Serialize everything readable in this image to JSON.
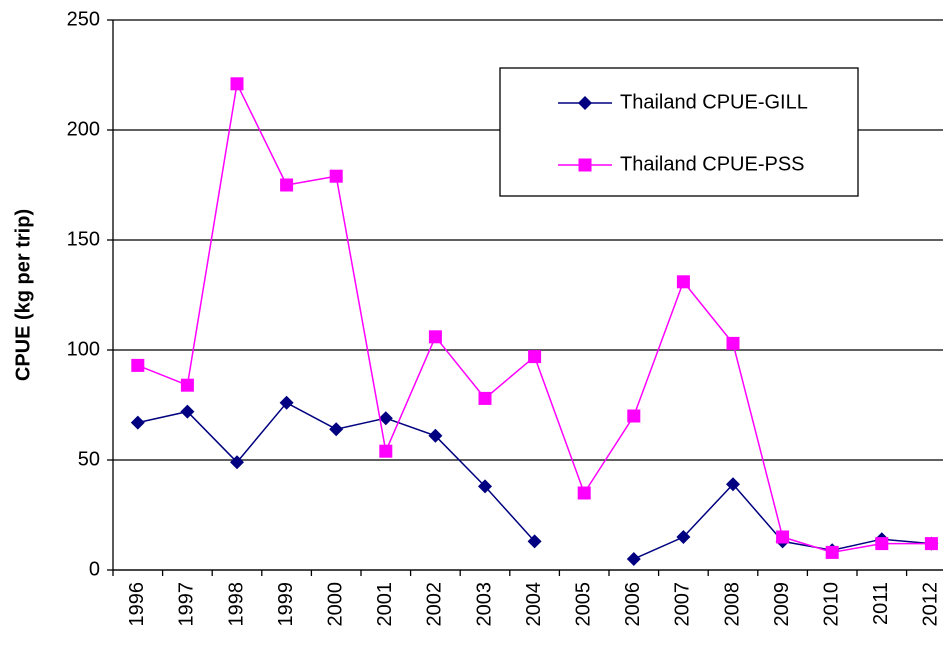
{
  "chart_data": {
    "type": "line",
    "ylabel": "CPUE (kg per trip)",
    "categories": [
      "1996",
      "1997",
      "1998",
      "1999",
      "2000",
      "2001",
      "2002",
      "2003",
      "2004",
      "2005",
      "2006",
      "2007",
      "2008",
      "2009",
      "2010",
      "2011",
      "2012"
    ],
    "series": [
      {
        "name": "Thailand CPUE-GILL",
        "color": "#000080",
        "marker": "diamond",
        "values": [
          67,
          72,
          49,
          76,
          64,
          69,
          61,
          38,
          13,
          null,
          5,
          15,
          39,
          13,
          9,
          14,
          12
        ]
      },
      {
        "name": "Thailand CPUE-PSS",
        "color": "#ff00ff",
        "marker": "square",
        "values": [
          93,
          84,
          221,
          175,
          179,
          54,
          106,
          78,
          97,
          35,
          70,
          131,
          103,
          15,
          8,
          12,
          12
        ]
      }
    ],
    "ylim": [
      0,
      250
    ],
    "yticks": [
      0,
      50,
      100,
      150,
      200,
      250
    ],
    "grid": true
  }
}
